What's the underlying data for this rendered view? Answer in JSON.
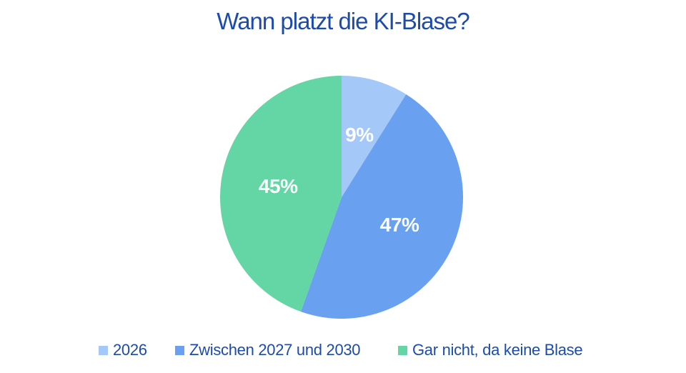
{
  "page": {
    "background_color": "#FFFFFF"
  },
  "chart_data": {
    "type": "pie",
    "title": "Wann platzt die KI-Blase?",
    "title_color": "#1C4BAC",
    "legend_position": "bottom",
    "legend_text_color": "#1C4BAC",
    "label_text_color": "#FFFFFF",
    "start_angle_deg": 0,
    "direction": "clockwise",
    "slices": [
      {
        "label": "2026",
        "value": 9,
        "display": "9%",
        "color": "#A4C8F8"
      },
      {
        "label": "Zwischen 2027 und 2030",
        "value": 47,
        "display": "47%",
        "color": "#69A0F0"
      },
      {
        "label": "Gar nicht, da keine Blase",
        "value": 45,
        "display": "45%",
        "color": "#64D6A5"
      }
    ]
  }
}
